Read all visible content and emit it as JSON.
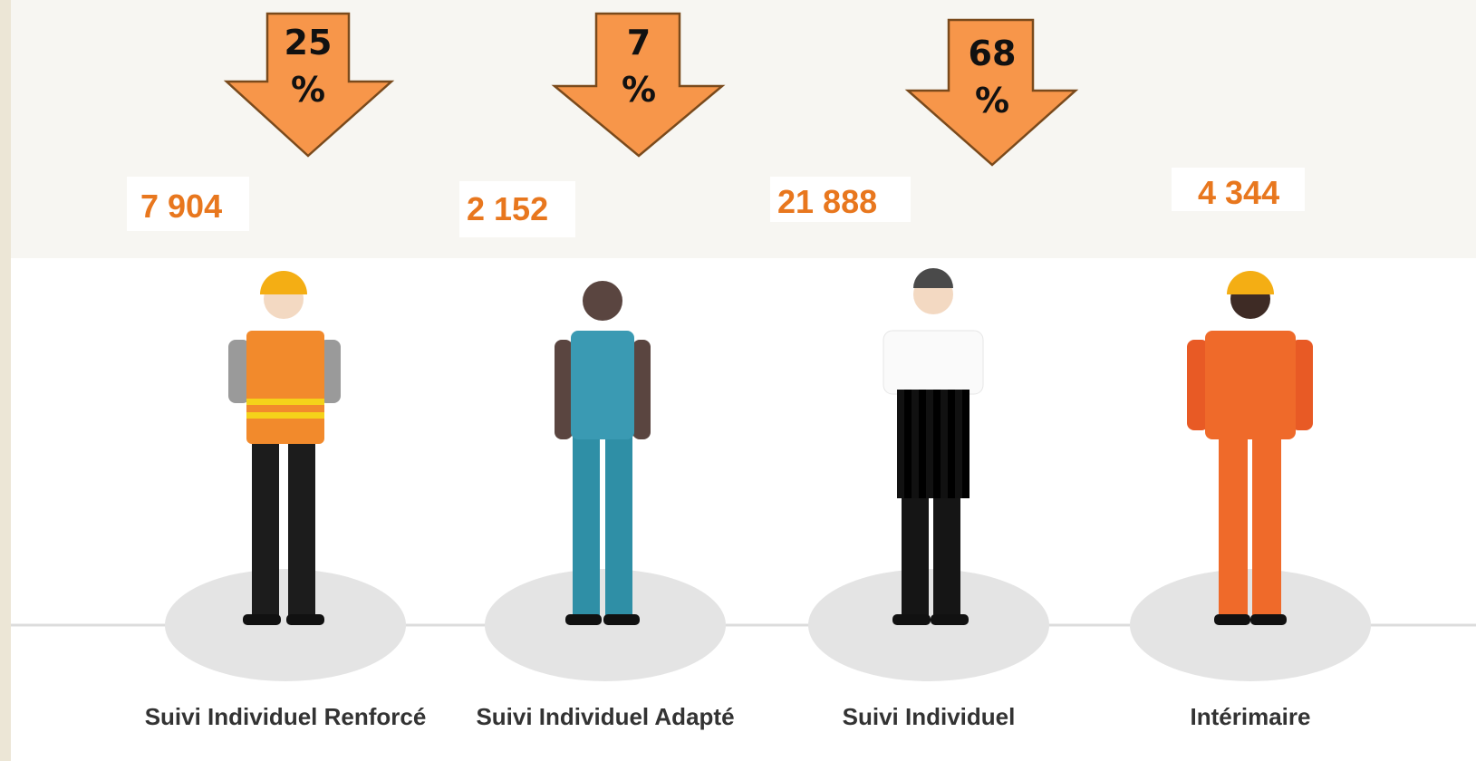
{
  "arrows": [
    {
      "value": "25",
      "unit": "%"
    },
    {
      "value": "7",
      "unit": "%"
    },
    {
      "value": "68",
      "unit": "%"
    }
  ],
  "counts": [
    "7 904",
    "2 152",
    "21 888",
    "4 344"
  ],
  "labels": [
    "Suivi Individuel Renforcé",
    "Suivi Individuel Adapté",
    "Suivi Individuel",
    "Intérimaire"
  ]
}
